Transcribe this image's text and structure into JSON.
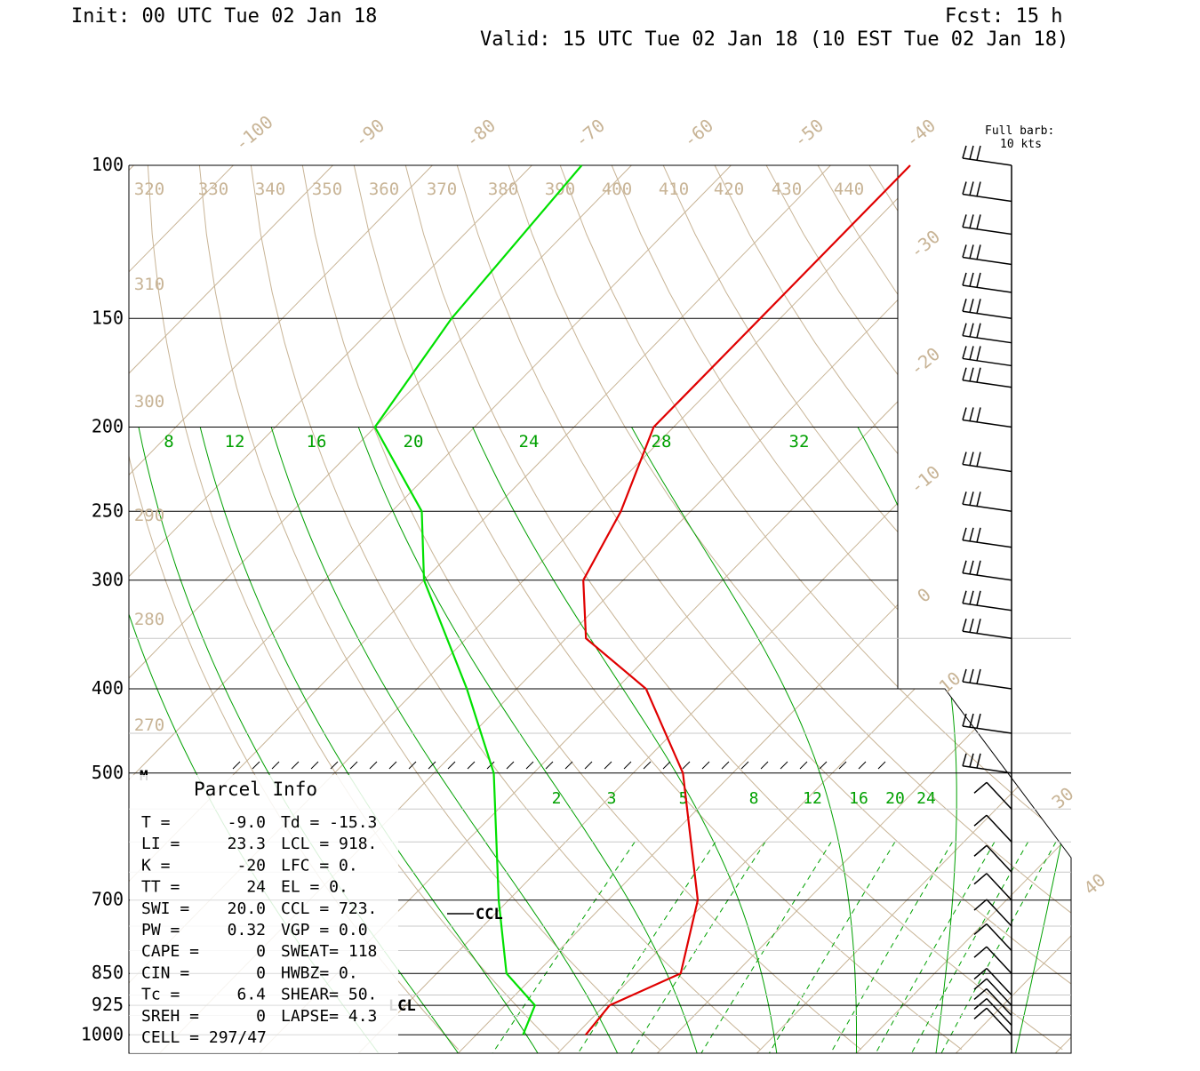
{
  "header": {
    "init": "Init: 00 UTC Tue 02 Jan 18",
    "fcst": "Fcst:   15 h",
    "valid": "Valid: 15 UTC Tue 02 Jan 18 (10 EST Tue 02 Jan 18)"
  },
  "barb_note": {
    "line1": "Full barb:",
    "line2": "10 kts"
  },
  "parcel_info": {
    "title": "Parcel Info",
    "rows": [
      [
        "T  =",
        "-9.0",
        "Td = -15.3"
      ],
      [
        "LI =",
        "23.3",
        "LCL =  918."
      ],
      [
        "K  =",
        "-20",
        "LFC =    0."
      ],
      [
        "TT =",
        "24",
        "EL  =    0."
      ],
      [
        "SWI =",
        "20.0",
        "CCL =  723."
      ],
      [
        "PW =",
        "0.32",
        "VGP =   0.0"
      ],
      [
        "CAPE =",
        "0",
        "SWEAT=  118"
      ],
      [
        "CIN =",
        "0",
        "HWBZ=    0."
      ],
      [
        "Tc =",
        "6.4",
        "SHEAR=  50."
      ],
      [
        "SREH =",
        "0",
        "LAPSE=  4.3"
      ],
      [
        "CELL = 297/47",
        "",
        ""
      ]
    ]
  },
  "labels": {
    "ccl": "CCL",
    "lcl": "LCL",
    "m_marker": "M"
  },
  "colors": {
    "temperature": "#e00000",
    "dewpoint": "#00e000",
    "isotherm": "#c8b496",
    "mixing_ratio": "#00a000",
    "grid": "#000000"
  },
  "chart_data": {
    "type": "skew-t log-p sounding",
    "y_pressure_ticks_hpa": [
      100,
      150,
      200,
      250,
      300,
      400,
      500,
      700,
      850,
      925,
      1000
    ],
    "ylim_hpa": [
      100,
      1050
    ],
    "isotherm_labels_c": [
      "-100",
      "-90",
      "-80",
      "-70",
      "-60",
      "-50",
      "-40",
      "-30",
      "-20",
      "-10",
      "0",
      "10",
      "30",
      "40"
    ],
    "theta_labels_k": [
      "320",
      "330",
      "340",
      "350",
      "360",
      "370",
      "380",
      "390",
      "400",
      "410",
      "420",
      "430",
      "440",
      "310",
      "300",
      "290",
      "280",
      "270"
    ],
    "theta_e_labels_k": [
      "8",
      "12",
      "16",
      "20",
      "24",
      "28",
      "32"
    ],
    "mixing_ratio_labels_gkg": [
      "2",
      "3",
      "5",
      "8",
      "12",
      "16",
      "20",
      "24"
    ],
    "temperature_profile": [
      {
        "p": 1000,
        "t": -9.0
      },
      {
        "p": 925,
        "t": -9.5
      },
      {
        "p": 850,
        "t": -5.5
      },
      {
        "p": 700,
        "t": -11.0
      },
      {
        "p": 500,
        "t": -25.0
      },
      {
        "p": 400,
        "t": -37.0
      },
      {
        "p": 350,
        "t": -48.0
      },
      {
        "p": 300,
        "t": -54.0
      },
      {
        "p": 250,
        "t": -57.0
      },
      {
        "p": 200,
        "t": -62.0
      },
      {
        "p": 150,
        "t": -62.0
      },
      {
        "p": 100,
        "t": -62.0
      }
    ],
    "dewpoint_profile": [
      {
        "p": 1000,
        "t": -15.3
      },
      {
        "p": 925,
        "t": -17.0
      },
      {
        "p": 850,
        "t": -23.0
      },
      {
        "p": 700,
        "t": -31.0
      },
      {
        "p": 500,
        "t": -44.0
      },
      {
        "p": 400,
        "t": -55.0
      },
      {
        "p": 300,
        "t": -70.0
      },
      {
        "p": 250,
        "t": -77.0
      },
      {
        "p": 200,
        "t": -90.0
      },
      {
        "p": 150,
        "t": -93.0
      },
      {
        "p": 100,
        "t": -95.0
      }
    ],
    "wind_barbs": {
      "note": "Full barb: 10 kts",
      "levels_hpa": [
        100,
        110,
        120,
        130,
        140,
        150,
        160,
        170,
        180,
        200,
        225,
        250,
        275,
        300,
        325,
        350,
        400,
        450,
        500,
        550,
        600,
        650,
        700,
        750,
        800,
        850,
        900,
        925,
        950,
        975,
        1000
      ]
    }
  }
}
